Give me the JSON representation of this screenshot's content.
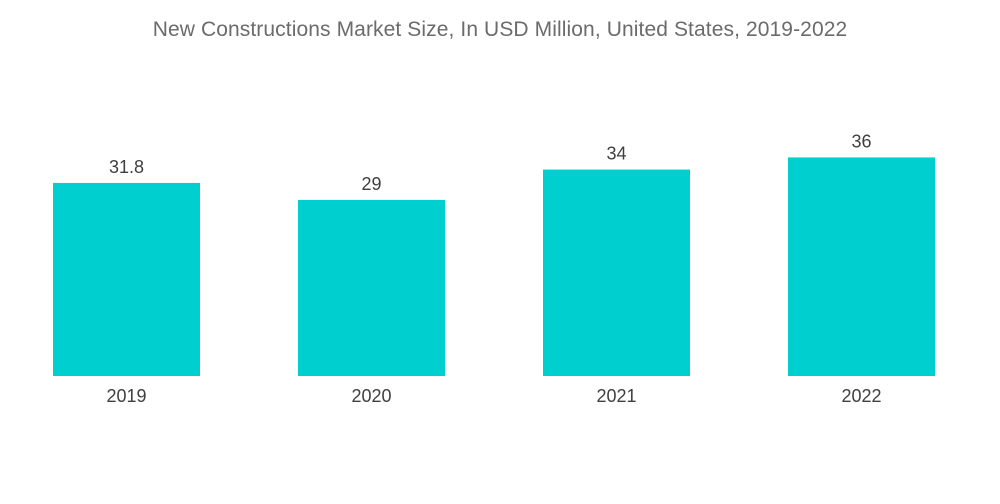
{
  "chart_data": {
    "type": "bar",
    "title": "New Constructions Market Size, In USD Million, United States, 2019-2022",
    "categories": [
      "2019",
      "2020",
      "2021",
      "2022"
    ],
    "values": [
      31.8,
      29,
      34,
      36
    ],
    "value_labels": [
      "31.8",
      "29",
      "34",
      "36"
    ],
    "xlabel": "",
    "ylabel": "",
    "ylim": [
      0,
      42
    ],
    "grid": false,
    "legend": "none",
    "colors": {
      "bar": "#00cfd0",
      "text": "#3f3f3f",
      "title": "#6b6b6b"
    }
  }
}
